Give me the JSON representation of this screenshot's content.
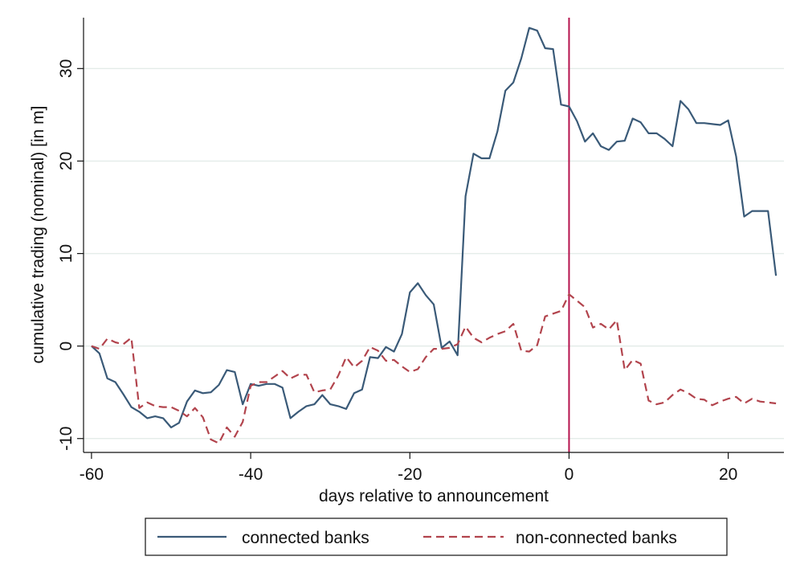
{
  "chart_data": {
    "type": "line",
    "title": "",
    "xlabel": "days relative to announcement",
    "ylabel": "cumulative trading (nominal) [in m]",
    "xlim": [
      -61,
      27
    ],
    "ylim": [
      -11.5,
      35.5
    ],
    "x_ticks": [
      -60,
      -40,
      -20,
      0,
      20
    ],
    "x_tick_labels": [
      "-60",
      "-40",
      "-20",
      "0",
      "20"
    ],
    "y_ticks": [
      -10,
      0,
      10,
      20,
      30
    ],
    "y_tick_labels": [
      "-10",
      "0",
      "10",
      "20",
      "30"
    ],
    "grid": "horizontal",
    "legend_position": "bottom",
    "vertical_line": {
      "x": 0,
      "color": "#b5124d"
    },
    "series": [
      {
        "name": "connected banks",
        "color": "#3a5a78",
        "dash": "solid",
        "x": [
          -60,
          -59,
          -58,
          -57,
          -56,
          -55,
          -54,
          -53,
          -52,
          -51,
          -50,
          -49,
          -48,
          -47,
          -46,
          -45,
          -44,
          -43,
          -42,
          -41,
          -40,
          -39,
          -38,
          -37,
          -36,
          -35,
          -34,
          -33,
          -32,
          -31,
          -30,
          -29,
          -28,
          -27,
          -26,
          -25,
          -24,
          -23,
          -22,
          -21,
          -20,
          -19,
          -18,
          -17,
          -16,
          -15,
          -14,
          -13,
          -12,
          -11,
          -10,
          -9,
          -8,
          -7,
          -6,
          -5,
          -4,
          -3,
          -2,
          -1,
          0,
          1,
          2,
          3,
          4,
          5,
          6,
          7,
          8,
          9,
          10,
          11,
          12,
          13,
          14,
          15,
          16,
          17,
          18,
          19,
          20,
          21,
          22,
          23,
          24,
          25,
          26
        ],
        "values": [
          0,
          -0.8,
          -3.5,
          -3.9,
          -5.2,
          -6.6,
          -7.1,
          -7.8,
          -7.6,
          -7.8,
          -8.8,
          -8.3,
          -6.0,
          -4.8,
          -5.1,
          -5.0,
          -4.2,
          -2.6,
          -2.8,
          -6.3,
          -4.1,
          -4.3,
          -4.1,
          -4.1,
          -4.5,
          -7.8,
          -7.1,
          -6.5,
          -6.3,
          -5.3,
          -6.3,
          -6.5,
          -6.8,
          -5.1,
          -4.7,
          -1.2,
          -1.3,
          -0.1,
          -0.6,
          1.3,
          5.8,
          6.8,
          5.5,
          4.5,
          -0.2,
          0.5,
          -1.0,
          16.2,
          20.8,
          20.3,
          20.3,
          23.2,
          27.6,
          28.5,
          31.1,
          34.4,
          34.1,
          32.2,
          32.1,
          26.1,
          25.9,
          24.3,
          22.1,
          23.0,
          21.6,
          21.2,
          22.1,
          22.2,
          24.6,
          24.2,
          23.0,
          23.0,
          22.4,
          21.6,
          26.5,
          25.6,
          24.1,
          24.1,
          24.0,
          23.9,
          24.4,
          20.5,
          14.0,
          14.6,
          14.6,
          14.6,
          7.6
        ]
      },
      {
        "name": "non-connected banks",
        "color": "#b2444d",
        "dash": "dashed",
        "x": [
          -60,
          -59,
          -58,
          -57,
          -56,
          -55,
          -54,
          -53,
          -52,
          -51,
          -50,
          -49,
          -48,
          -47,
          -46,
          -45,
          -44,
          -43,
          -42,
          -41,
          -40,
          -39,
          -38,
          -37,
          -36,
          -35,
          -34,
          -33,
          -32,
          -31,
          -30,
          -29,
          -28,
          -27,
          -26,
          -25,
          -24,
          -23,
          -22,
          -21,
          -20,
          -19,
          -18,
          -17,
          -16,
          -15,
          -14,
          -13,
          -12,
          -11,
          -10,
          -9,
          -8,
          -7,
          -6,
          -5,
          -4,
          -3,
          -2,
          -1,
          0,
          1,
          2,
          3,
          4,
          5,
          6,
          7,
          8,
          9,
          10,
          11,
          12,
          13,
          14,
          15,
          16,
          17,
          18,
          19,
          20,
          21,
          22,
          23,
          24,
          25,
          26
        ],
        "values": [
          0,
          -0.3,
          0.8,
          0.4,
          0.2,
          0.9,
          -6.7,
          -6.1,
          -6.5,
          -6.6,
          -6.6,
          -7.0,
          -7.6,
          -6.7,
          -7.7,
          -10.1,
          -10.5,
          -8.8,
          -9.8,
          -8.2,
          -4.3,
          -3.9,
          -3.9,
          -3.3,
          -2.7,
          -3.5,
          -3.1,
          -3.1,
          -5.0,
          -4.8,
          -4.7,
          -3.2,
          -1.2,
          -2.3,
          -1.6,
          -0.1,
          -0.5,
          -1.6,
          -1.5,
          -2.2,
          -2.8,
          -2.5,
          -1.2,
          -0.3,
          -0.3,
          -0.2,
          0.2,
          2.1,
          0.9,
          0.4,
          0.9,
          1.3,
          1.6,
          2.4,
          -0.5,
          -0.6,
          0.1,
          3.2,
          3.5,
          3.8,
          5.6,
          4.9,
          4.2,
          2.0,
          2.4,
          1.8,
          2.8,
          -2.6,
          -1.5,
          -1.9,
          -5.9,
          -6.3,
          -6.1,
          -5.3,
          -4.7,
          -5.1,
          -5.7,
          -5.8,
          -6.4,
          -6.0,
          -5.7,
          -5.5,
          -6.2,
          -5.7,
          -6.0,
          -6.1,
          -6.2
        ]
      }
    ]
  }
}
